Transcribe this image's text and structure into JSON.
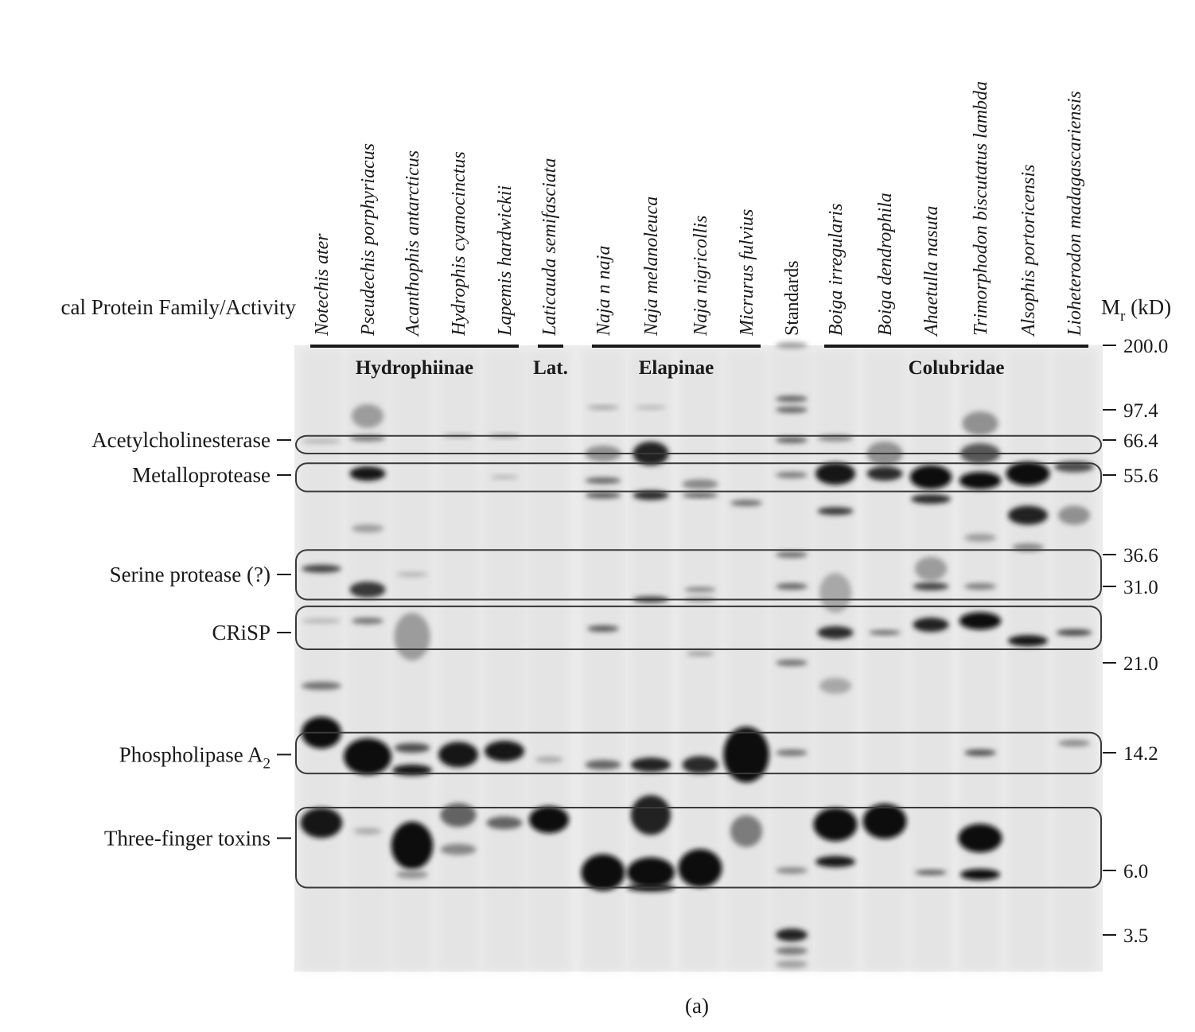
{
  "header": {
    "left_label": "cal Protein Family/Activity",
    "mw_label_main": "M",
    "mw_label_sub": "r",
    "mw_label_unit": " (kD)"
  },
  "lanes": [
    {
      "name": "Notechis ater",
      "italic": true
    },
    {
      "name": "Pseudechis porphyriacus",
      "italic": true
    },
    {
      "name": "Acanthophis antarcticus",
      "italic": true
    },
    {
      "name": "Hydrophis cyanocinctus",
      "italic": true
    },
    {
      "name": "Lapemis hardwickii",
      "italic": true
    },
    {
      "name": "Laticauda semifasciata",
      "italic": true
    },
    {
      "name": "Naja n naja",
      "italic": true
    },
    {
      "name": "Naja melanoleuca",
      "italic": true
    },
    {
      "name": "Naja nigricollis",
      "italic": true
    },
    {
      "name": "Micrurus fulvius",
      "italic": true
    },
    {
      "name": "Standards",
      "italic": false
    },
    {
      "name": "Boiga irregularis",
      "italic": true
    },
    {
      "name": "Boiga dendrophila",
      "italic": true
    },
    {
      "name": "Ahaetulla nasuta",
      "italic": true
    },
    {
      "name": "Trimorphodon biscutatus lambda",
      "italic": true
    },
    {
      "name": "Alsophis portoricensis",
      "italic": true
    },
    {
      "name": "Lioheterodon madagascariensis",
      "italic": true
    }
  ],
  "groups": [
    {
      "name": "Hydrophiinae",
      "first_lane": 0,
      "last_lane": 4
    },
    {
      "name": "Lat.",
      "first_lane": 5,
      "last_lane": 5
    },
    {
      "name": "Elapinae",
      "first_lane": 6,
      "last_lane": 9
    },
    {
      "name": "Colubridae",
      "first_lane": 11,
      "last_lane": 16
    }
  ],
  "protein_families": [
    {
      "name": "Acetylcholinesterase",
      "sub": "",
      "mw": 66.4,
      "box_kd": [
        70,
        62
      ]
    },
    {
      "name": "Metalloprotease",
      "sub": "",
      "mw": 55.6,
      "box_kd": [
        59,
        51
      ]
    },
    {
      "name": "Serine protease (?)",
      "sub": "",
      "mw": 33.0,
      "box_kd": [
        37.5,
        29
      ]
    },
    {
      "name": "CRiSP",
      "sub": "",
      "mw": 24.5,
      "box_kd": [
        28,
        22.5
      ]
    },
    {
      "name": "Phospholipase A",
      "sub": "2",
      "mw": 14.0,
      "box_kd": [
        15.5,
        12.2
      ]
    },
    {
      "name": "Three-finger toxins",
      "sub": "",
      "mw": 7.6,
      "box_kd": [
        9.5,
        5.2
      ]
    }
  ],
  "mw_markers": [
    "200.0",
    "97.4",
    "66.4",
    "55.6",
    "36.6",
    "31.0",
    "21.0",
    "14.2",
    "6.0",
    "3.5"
  ],
  "caption": "(a)"
}
